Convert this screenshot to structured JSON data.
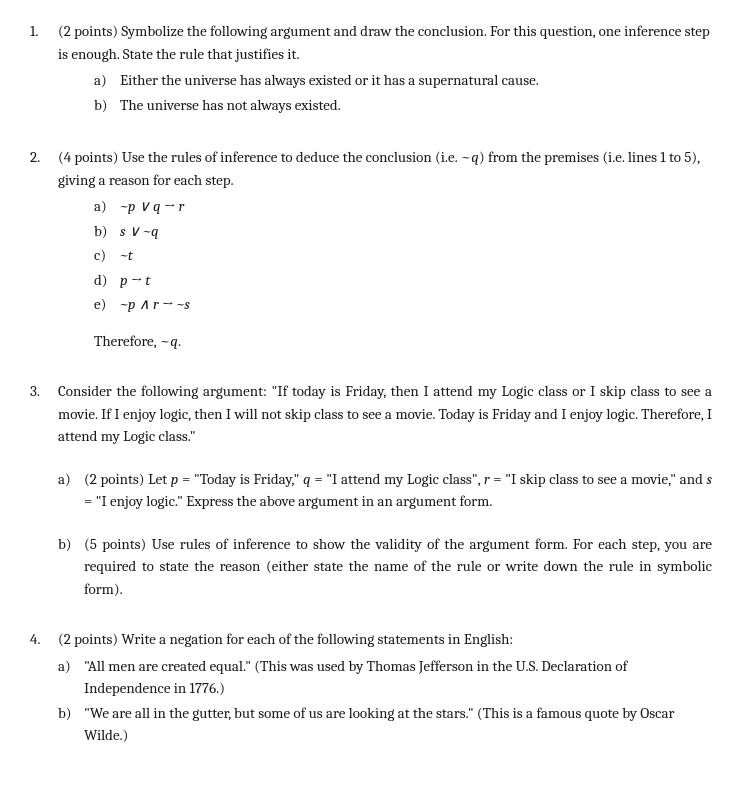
{
  "q1": {
    "num": "1.",
    "intro": "(2 points) Symbolize the following argument and draw the conclusion. For this question, one inference step is enough. State the rule that justifies it.",
    "items": [
      {
        "label": "a)",
        "text": "Either the universe has always existed or it has a supernatural cause."
      },
      {
        "label": "b)",
        "text": "The universe has not always existed."
      }
    ]
  },
  "q2": {
    "num": "2.",
    "intro": "(4 points) Use the rules of inference to deduce the conclusion (i.e. ~q) from the premises (i.e. lines 1 to 5), giving a reason for each step.",
    "items": [
      {
        "label": "a)",
        "text": "~p ∨ q → r"
      },
      {
        "label": "b)",
        "text": "s ∨ ~q"
      },
      {
        "label": "c)",
        "text": "~t"
      },
      {
        "label": "d)",
        "text": "p → t"
      },
      {
        "label": "e)",
        "text": "~p ∧ r → ~s"
      }
    ],
    "therefore": "Therefore, ~q."
  },
  "q3": {
    "num": "3.",
    "intro": "Consider the following argument:  \"If today is Friday, then I attend my Logic class or I skip class to see a movie. If I enjoy logic, then I will not skip class to see a movie. Today is Friday and I enjoy logic. Therefore, I attend my Logic class.\"",
    "parts": [
      {
        "label": "a)",
        "text": "(2 points) Let p = \"Today is Friday,\" q = \"I attend my Logic class\", r = \"I skip class to see a movie,\" and s = \"I enjoy logic.\"  Express the above argument in an argument form."
      },
      {
        "label": "b)",
        "text": "(5 points) Use rules of inference to show the validity of the argument form. For each step, you are required to state the reason (either state the name of the rule or write down the rule in symbolic form)."
      }
    ]
  },
  "q4": {
    "num": "4.",
    "intro": "(2 points) Write a negation for each of the following statements in English:",
    "items": [
      {
        "label": "a)",
        "text": "\"All men are created equal.\" (This was used by Thomas Jefferson in the U.S. Declaration of Independence in 1776.)"
      },
      {
        "label": "b)",
        "text": " \"We are all in the gutter, but some of us are looking at the stars.\" (This is a famous quote by Oscar Wilde.)"
      }
    ]
  }
}
